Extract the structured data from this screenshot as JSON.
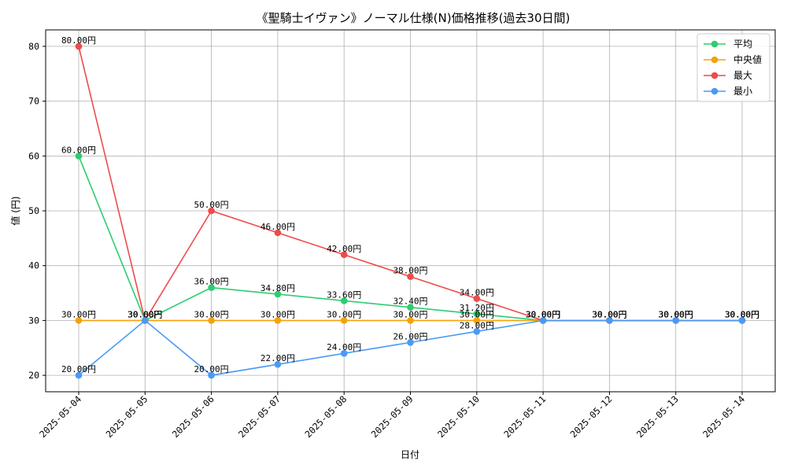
{
  "chart_data": {
    "type": "line",
    "title": "《聖騎士イヴァン》ノーマル仕様(N)価格推移(過去30日間)",
    "xlabel": "日付",
    "ylabel": "値 (円)",
    "categories": [
      "2025-05-04",
      "2025-05-05",
      "2025-05-06",
      "2025-05-07",
      "2025-05-08",
      "2025-05-09",
      "2025-05-10",
      "2025-05-11",
      "2025-05-12",
      "2025-05-13",
      "2025-05-14"
    ],
    "ylim": [
      17,
      83
    ],
    "yticks": [
      20,
      30,
      40,
      50,
      60,
      70,
      80
    ],
    "grid": true,
    "legend_position": "top-right",
    "value_suffix": "円",
    "series": [
      {
        "name": "平均",
        "color": "#2ecc71",
        "values": [
          60,
          30,
          36,
          34.8,
          33.6,
          32.4,
          31.2,
          30,
          30,
          30,
          30
        ]
      },
      {
        "name": " 中央値",
        "color": "#f5a20a",
        "values": [
          30,
          30,
          30,
          30,
          30,
          30,
          30,
          30,
          30,
          30,
          30
        ]
      },
      {
        "name": "最大",
        "color": "#ef4b4b",
        "values": [
          80,
          30,
          50,
          46,
          42,
          38,
          34,
          30,
          30,
          30,
          30
        ]
      },
      {
        "name": "最小",
        "color": "#4a9af5",
        "values": [
          20,
          30,
          20,
          22,
          24,
          26,
          28,
          30,
          30,
          30,
          30
        ]
      }
    ]
  }
}
